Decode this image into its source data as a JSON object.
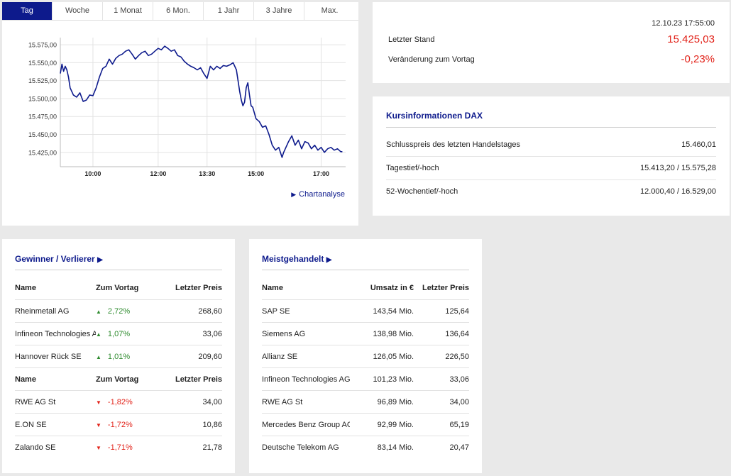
{
  "tabs": [
    "Tag",
    "Woche",
    "1 Monat",
    "6 Mon.",
    "1 Jahr",
    "3 Jahre",
    "Max."
  ],
  "active_tab": 0,
  "chart_link": "Chartanalyse",
  "chart_data": {
    "type": "line",
    "yticks": [
      "15.575,00",
      "15.550,00",
      "15.525,00",
      "15.500,00",
      "15.475,00",
      "15.450,00",
      "15.425,00"
    ],
    "ytick_values": [
      15575,
      15550,
      15525,
      15500,
      15475,
      15450,
      15425
    ],
    "xticks": [
      "10:00",
      "12:00",
      "13:30",
      "15:00",
      "17:00"
    ],
    "xtick_hours": [
      10,
      12,
      13.5,
      15,
      17
    ],
    "ylim": [
      15405,
      15585
    ],
    "xlim": [
      9.0,
      17.75
    ],
    "grid": true,
    "color": "#0d1a8c",
    "series": [
      {
        "x": [
          9.0,
          9.05,
          9.1,
          9.15,
          9.2,
          9.25,
          9.3,
          9.4,
          9.5,
          9.6,
          9.7,
          9.8,
          9.9,
          10.0,
          10.1,
          10.2,
          10.3,
          10.4,
          10.5,
          10.6,
          10.7,
          10.8,
          10.9,
          11.0,
          11.1,
          11.2,
          11.3,
          11.4,
          11.5,
          11.6,
          11.7,
          11.8,
          11.9,
          12.0,
          12.1,
          12.2,
          12.3,
          12.4,
          12.5,
          12.6,
          12.7,
          12.8,
          12.9,
          13.0,
          13.1,
          13.2,
          13.3,
          13.4,
          13.5,
          13.6,
          13.7,
          13.8,
          13.9,
          14.0,
          14.1,
          14.2,
          14.3,
          14.4,
          14.5,
          14.55,
          14.6,
          14.65,
          14.7,
          14.75,
          14.8,
          14.85,
          14.9,
          14.95,
          15.0,
          15.1,
          15.2,
          15.3,
          15.4,
          15.5,
          15.6,
          15.7,
          15.8,
          15.85,
          15.9,
          16.0,
          16.1,
          16.2,
          16.3,
          16.4,
          16.5,
          16.6,
          16.7,
          16.8,
          16.9,
          17.0,
          17.1,
          17.2,
          17.3,
          17.4,
          17.5,
          17.6,
          17.65
        ],
        "y": [
          15535,
          15548,
          15538,
          15545,
          15540,
          15530,
          15515,
          15505,
          15502,
          15508,
          15496,
          15498,
          15505,
          15504,
          15515,
          15530,
          15542,
          15545,
          15555,
          15548,
          15556,
          15560,
          15562,
          15566,
          15568,
          15562,
          15555,
          15560,
          15564,
          15566,
          15560,
          15562,
          15566,
          15570,
          15568,
          15573,
          15570,
          15566,
          15568,
          15560,
          15558,
          15552,
          15548,
          15545,
          15543,
          15540,
          15543,
          15535,
          15528,
          15545,
          15540,
          15545,
          15542,
          15546,
          15545,
          15547,
          15550,
          15540,
          15510,
          15498,
          15490,
          15495,
          15515,
          15522,
          15505,
          15490,
          15488,
          15480,
          15472,
          15468,
          15460,
          15462,
          15450,
          15435,
          15428,
          15432,
          15418,
          15425,
          15430,
          15440,
          15448,
          15435,
          15442,
          15430,
          15440,
          15438,
          15430,
          15435,
          15428,
          15432,
          15425,
          15430,
          15432,
          15428,
          15430,
          15426,
          15426
        ]
      }
    ]
  },
  "quote": {
    "timestamp": "12.10.23 17:55:00",
    "last_label": "Letzter Stand",
    "last_value": "15.425,03",
    "change_label": "Veränderung zum Vortag",
    "change_value": "-0,23%"
  },
  "kurs": {
    "title": "Kursinformationen DAX",
    "rows": [
      {
        "label": "Schlusspreis des letzten Handelstages",
        "value": "15.460,01"
      },
      {
        "label": "Tagestief/-hoch",
        "value": "15.413,20 / 15.575,28"
      },
      {
        "label": "52-Wochentief/-hoch",
        "value": "12.000,40 / 16.529,00"
      }
    ]
  },
  "gewinner": {
    "title": "Gewinner / Verlierer",
    "header": {
      "name": "Name",
      "change": "Zum Vortag",
      "price": "Letzter Preis"
    },
    "gainers": [
      {
        "name": "Rheinmetall AG",
        "change": "2,72%",
        "price": "268,60"
      },
      {
        "name": "Infineon Technologies AG",
        "change": "1,07%",
        "price": "33,06"
      },
      {
        "name": "Hannover Rück SE",
        "change": "1,01%",
        "price": "209,60"
      }
    ],
    "losers": [
      {
        "name": "RWE AG St",
        "change": "-1,82%",
        "price": "34,00"
      },
      {
        "name": "E.ON SE",
        "change": "-1,72%",
        "price": "10,86"
      },
      {
        "name": "Zalando SE",
        "change": "-1,71%",
        "price": "21,78"
      }
    ]
  },
  "meist": {
    "title": "Meistgehandelt",
    "header": {
      "name": "Name",
      "volume": "Umsatz in €",
      "price": "Letzter Preis"
    },
    "rows": [
      {
        "name": "SAP SE",
        "volume": "143,54 Mio.",
        "price": "125,64"
      },
      {
        "name": "Siemens AG",
        "volume": "138,98 Mio.",
        "price": "136,64"
      },
      {
        "name": "Allianz SE",
        "volume": "126,05 Mio.",
        "price": "226,50"
      },
      {
        "name": "Infineon Technologies AG",
        "volume": "101,23 Mio.",
        "price": "33,06"
      },
      {
        "name": "RWE AG St",
        "volume": "96,89 Mio.",
        "price": "34,00"
      },
      {
        "name": "Mercedes Benz Group AG ...",
        "volume": "92,99 Mio.",
        "price": "65,19"
      },
      {
        "name": "Deutsche Telekom AG",
        "volume": "83,14 Mio.",
        "price": "20,47"
      }
    ]
  }
}
